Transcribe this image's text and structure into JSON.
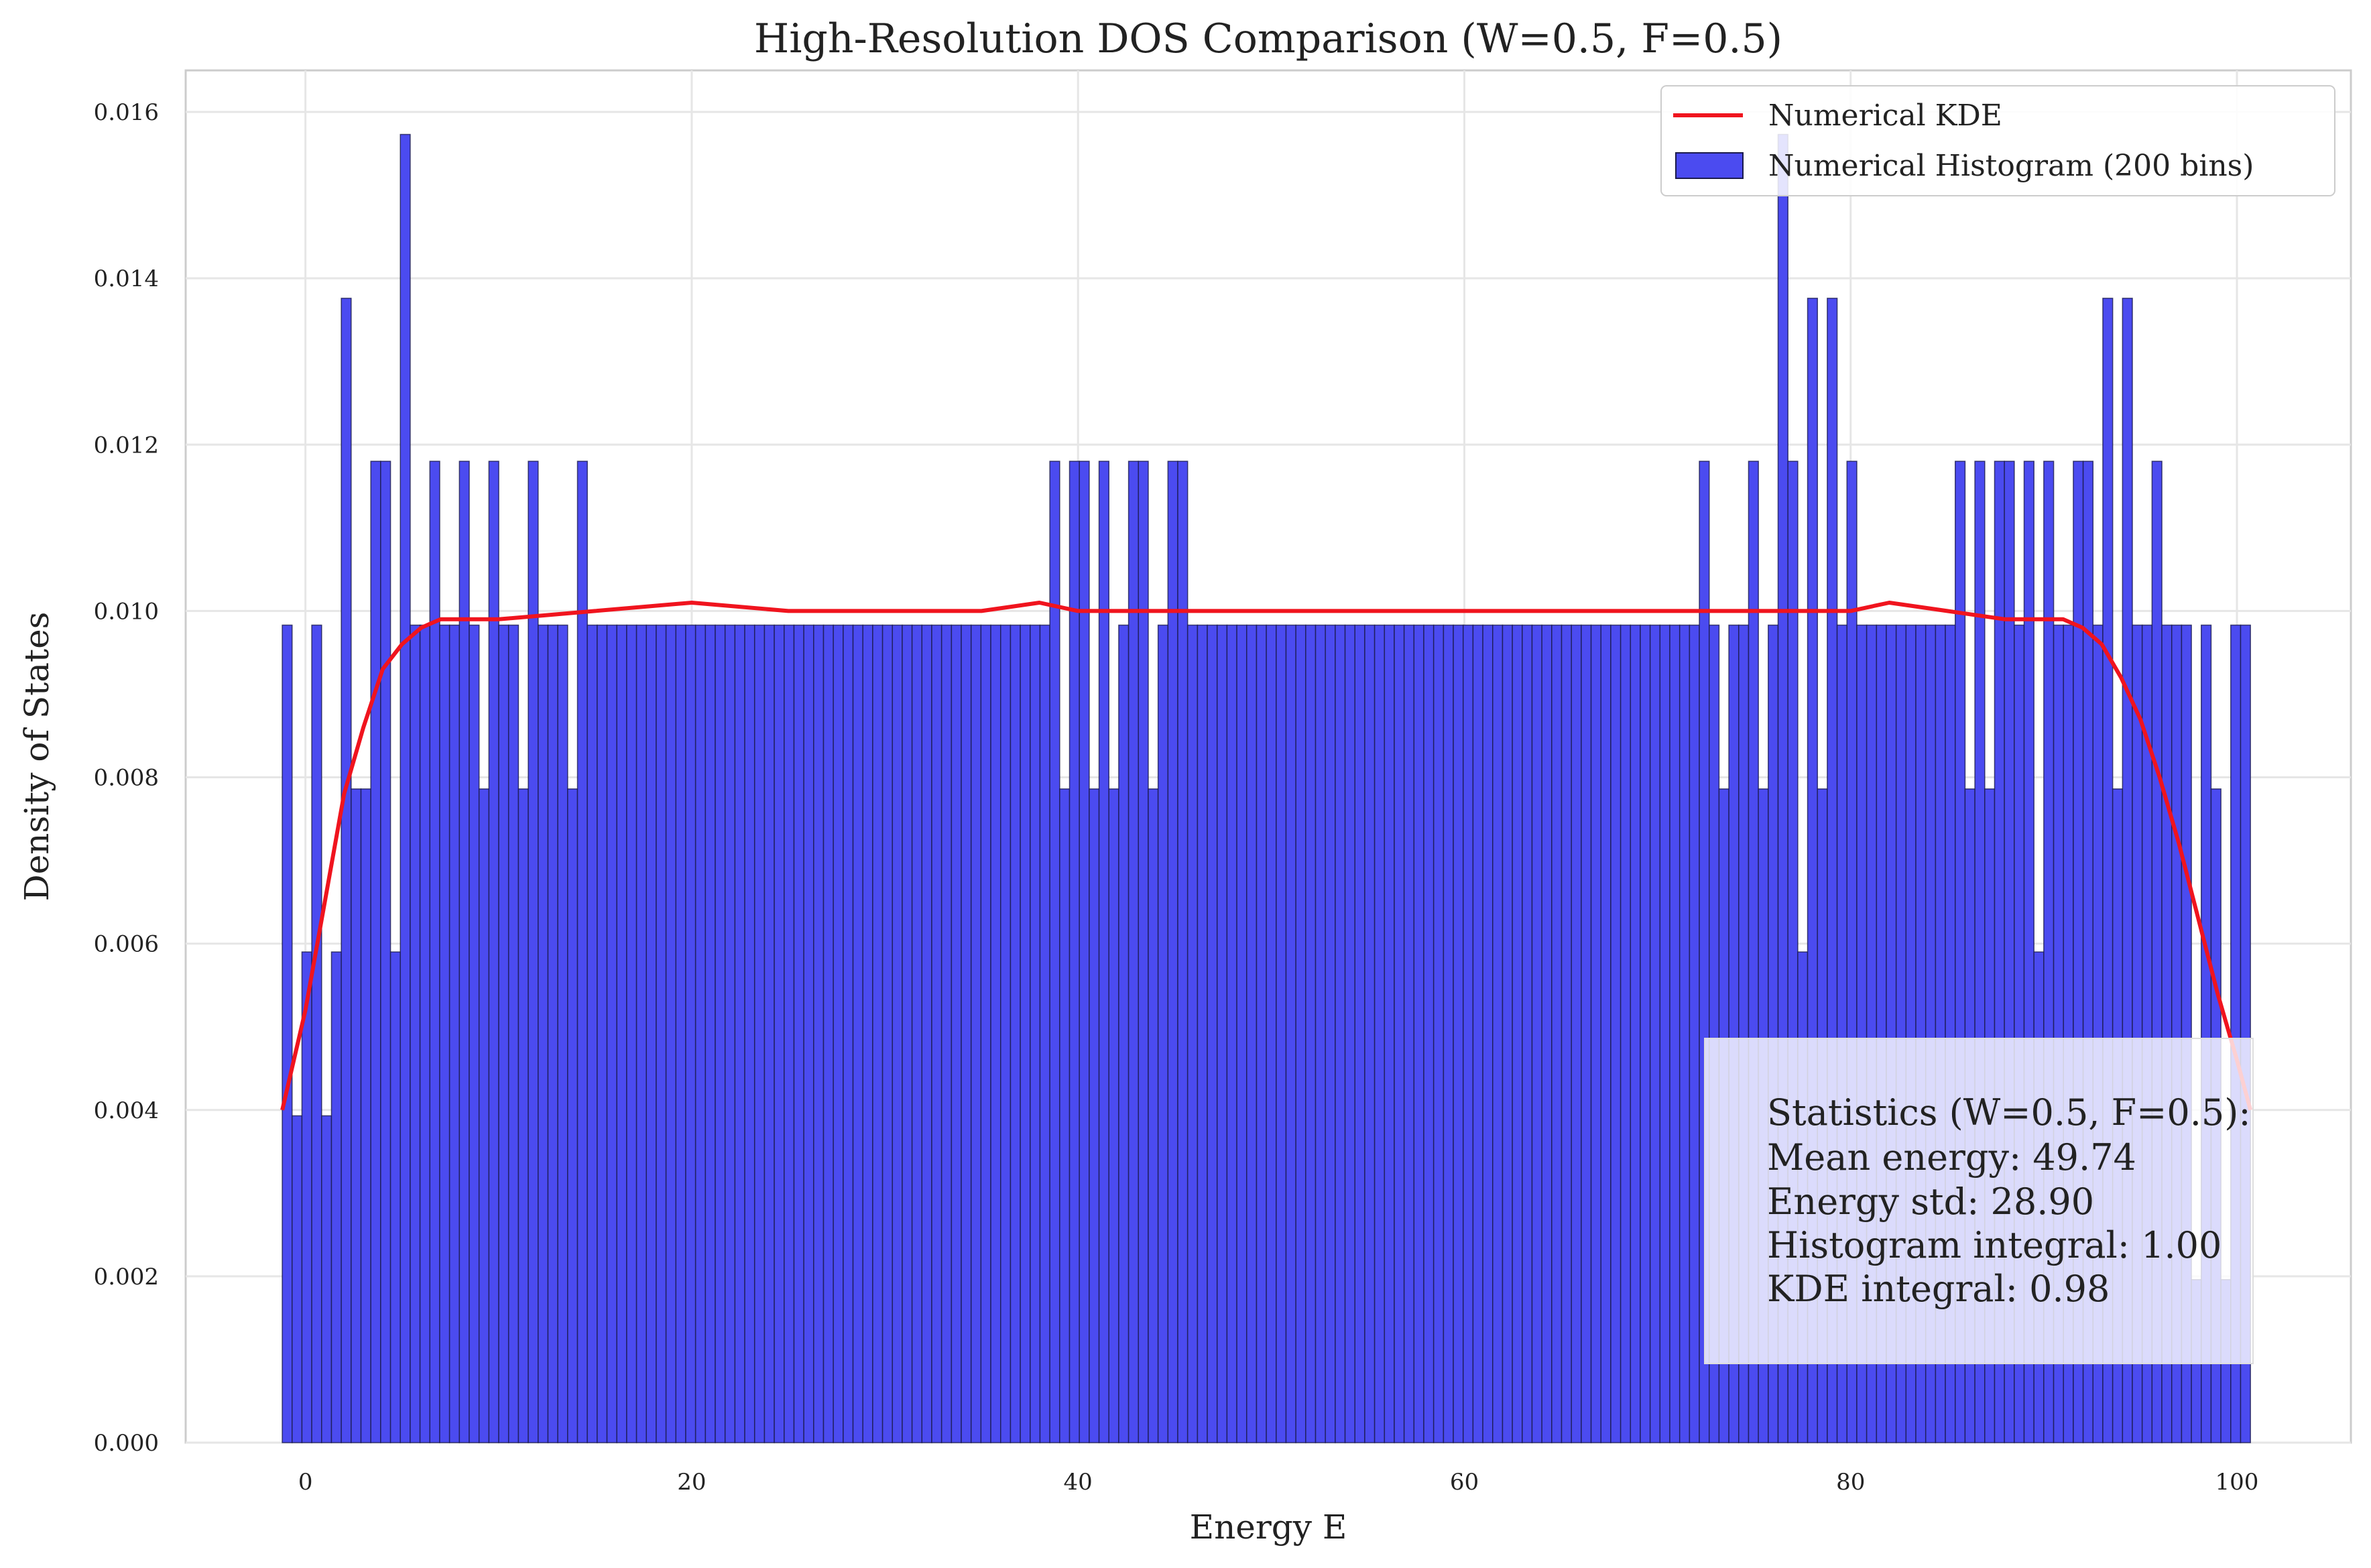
{
  "chart_data": {
    "type": "bar",
    "title": "High-Resolution DOS Comparison (W=0.5, F=0.5)",
    "xlabel": "Energy E",
    "ylabel": "Density of States",
    "xlim": [
      -6.2,
      105.9
    ],
    "ylim": [
      0,
      0.0165
    ],
    "xticks": [
      "0",
      "20",
      "40",
      "60",
      "80",
      "100"
    ],
    "xtick_values": [
      0,
      20,
      40,
      60,
      80,
      100
    ],
    "yticks": [
      "0.000",
      "0.002",
      "0.004",
      "0.006",
      "0.008",
      "0.010",
      "0.012",
      "0.014",
      "0.016"
    ],
    "ytick_values": [
      0,
      0.002,
      0.004,
      0.006,
      0.008,
      0.01,
      0.012,
      0.014,
      0.016
    ],
    "grid": true,
    "legend_position": "top-right",
    "histogram": {
      "name": "Numerical Histogram (200 bins)",
      "color": "#4b4bf0",
      "edge_color": "#1a1a4d",
      "bins": 200,
      "x_start": -1.2,
      "x_end": 100.7,
      "base_value": 0.00983,
      "overrides": [
        [
          0,
          0.00983
        ],
        [
          1,
          0.00393
        ],
        [
          2,
          0.0059
        ],
        [
          3,
          0.00983
        ],
        [
          4,
          0.00393
        ],
        [
          5,
          0.0059
        ],
        [
          6,
          0.01376
        ],
        [
          7,
          0.00786
        ],
        [
          8,
          0.00786
        ],
        [
          9,
          0.0118
        ],
        [
          10,
          0.0118
        ],
        [
          11,
          0.0059
        ],
        [
          12,
          0.01573
        ],
        [
          14,
          0.00983
        ],
        [
          15,
          0.0118
        ],
        [
          16,
          0.00983
        ],
        [
          17,
          0.00983
        ],
        [
          18,
          0.0118
        ],
        [
          20,
          0.00786
        ],
        [
          21,
          0.0118
        ],
        [
          23,
          0.00983
        ],
        [
          24,
          0.00786
        ],
        [
          25,
          0.0118
        ],
        [
          27,
          0.00983
        ],
        [
          29,
          0.00786
        ],
        [
          30,
          0.0118
        ],
        [
          78,
          0.0118
        ],
        [
          79,
          0.00786
        ],
        [
          80,
          0.0118
        ],
        [
          81,
          0.0118
        ],
        [
          82,
          0.00786
        ],
        [
          83,
          0.0118
        ],
        [
          84,
          0.00786
        ],
        [
          85,
          0.00983
        ],
        [
          86,
          0.0118
        ],
        [
          87,
          0.0118
        ],
        [
          88,
          0.00786
        ],
        [
          89,
          0.00983
        ],
        [
          90,
          0.0118
        ],
        [
          91,
          0.0118
        ],
        [
          144,
          0.0118
        ],
        [
          146,
          0.00786
        ],
        [
          149,
          0.0118
        ],
        [
          150,
          0.00786
        ],
        [
          151,
          0.00983
        ],
        [
          152,
          0.01573
        ],
        [
          153,
          0.0118
        ],
        [
          154,
          0.0059
        ],
        [
          155,
          0.01376
        ],
        [
          156,
          0.00786
        ],
        [
          157,
          0.01376
        ],
        [
          159,
          0.0118
        ],
        [
          169,
          0.00983
        ],
        [
          170,
          0.00983
        ],
        [
          170,
          0.0118
        ],
        [
          171,
          0.00786
        ],
        [
          172,
          0.0118
        ],
        [
          173,
          0.00786
        ],
        [
          174,
          0.0118
        ],
        [
          175,
          0.0118
        ],
        [
          176,
          0.00983
        ],
        [
          177,
          0.0118
        ],
        [
          178,
          0.0059
        ],
        [
          179,
          0.0118
        ],
        [
          180,
          0.00983
        ],
        [
          181,
          0.00983
        ],
        [
          182,
          0.0118
        ],
        [
          183,
          0.0118
        ],
        [
          184,
          0.00983
        ],
        [
          185,
          0.01376
        ],
        [
          186,
          0.00786
        ],
        [
          187,
          0.01376
        ],
        [
          188,
          0.00983
        ],
        [
          189,
          0.00983
        ],
        [
          190,
          0.0118
        ],
        [
          191,
          0.00983
        ],
        [
          192,
          0.00983
        ],
        [
          193,
          0.00983
        ],
        [
          194,
          0.00196
        ],
        [
          195,
          0.00983
        ],
        [
          196,
          0.00786
        ],
        [
          197,
          0.00196
        ],
        [
          198,
          0.00983
        ]
      ]
    },
    "kde": {
      "name": "Numerical KDE",
      "color": "#f0141e",
      "x": [
        -1.2,
        0,
        1,
        2,
        3,
        4,
        5,
        6,
        7,
        8,
        10,
        15,
        20,
        25,
        30,
        35,
        38,
        40,
        45,
        50,
        55,
        60,
        65,
        70,
        75,
        80,
        82,
        85,
        88,
        90,
        91,
        92,
        93,
        94,
        95,
        96,
        97,
        98,
        99,
        100,
        100.7
      ],
      "y": [
        0.004,
        0.0052,
        0.0065,
        0.0078,
        0.0086,
        0.0093,
        0.0096,
        0.0098,
        0.0099,
        0.0099,
        0.0099,
        0.01,
        0.0101,
        0.01,
        0.01,
        0.01,
        0.0101,
        0.01,
        0.01,
        0.01,
        0.01,
        0.01,
        0.01,
        0.01,
        0.01,
        0.01,
        0.0101,
        0.01,
        0.0099,
        0.0099,
        0.0099,
        0.0098,
        0.0096,
        0.0092,
        0.0087,
        0.008,
        0.0072,
        0.0063,
        0.0054,
        0.0046,
        0.004
      ]
    },
    "stats": {
      "heading": "Statistics (W=0.5, F=0.5):",
      "lines": [
        "Mean energy: 49.74",
        "Energy std: 28.90",
        "Histogram integral: 1.00",
        "KDE integral: 0.98"
      ]
    }
  }
}
